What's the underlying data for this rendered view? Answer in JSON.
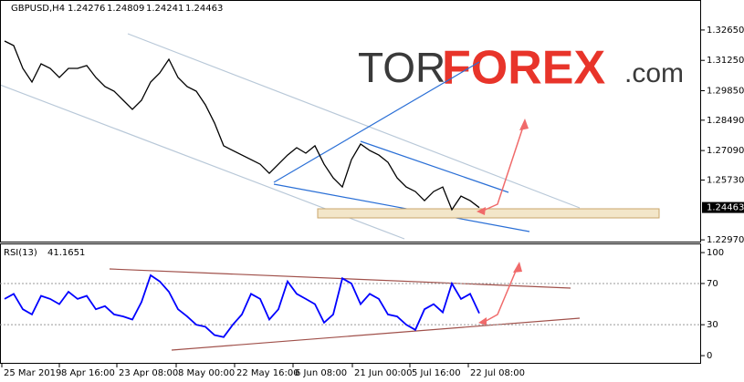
{
  "watermark": {
    "tor": "TOR",
    "forex": "FOREX",
    "com": ".com"
  },
  "chart_data": [
    {
      "type": "line",
      "title": "GBPUSD,H4",
      "ohlc": [
        1.24276,
        1.24809,
        1.24241,
        1.24463
      ],
      "x": [
        0,
        1,
        2,
        3,
        4,
        5,
        6,
        7,
        8,
        9,
        10,
        11,
        12,
        13,
        14,
        15,
        16,
        17,
        18,
        19,
        20,
        21,
        22,
        23,
        24,
        25,
        26,
        27,
        28,
        29,
        30,
        31,
        32,
        33,
        34,
        35,
        36,
        37,
        38,
        39,
        40,
        41,
        42,
        43,
        44,
        45,
        46,
        47,
        48,
        49,
        50,
        51,
        52
      ],
      "series": [
        {
          "name": "GBPUSD",
          "color": "#000000",
          "values": [
            1.3214,
            1.3193,
            1.3088,
            1.3025,
            1.3109,
            1.3088,
            1.3046,
            1.3088,
            1.3088,
            1.3101,
            1.3046,
            1.3004,
            1.2983,
            1.2941,
            1.2899,
            1.2941,
            1.3025,
            1.3067,
            1.313,
            1.3046,
            1.3004,
            1.2983,
            1.292,
            1.2836,
            1.2731,
            1.2709,
            1.2688,
            1.2667,
            1.2646,
            1.2604,
            1.2646,
            1.2688,
            1.2722,
            1.2697,
            1.2731,
            1.2646,
            1.2583,
            1.2541,
            1.2667,
            1.2739,
            1.2709,
            1.2688,
            1.2655,
            1.2583,
            1.2541,
            1.252,
            1.2478,
            1.252,
            1.2541,
            1.2436,
            1.2499,
            1.2478,
            1.2446
          ]
        }
      ],
      "current_price": 1.24463,
      "xlim": [
        -0.5,
        76.3
      ],
      "xticks": [
        {
          "value": -0.3,
          "label": "25 Mar 2019"
        },
        {
          "value": 6,
          "label": "8 Apr 16:00"
        },
        {
          "value": 12.3,
          "label": "23 Apr 08:00"
        },
        {
          "value": 18.8,
          "label": "8 May 00:00"
        },
        {
          "value": 25.2,
          "label": "22 May 16:00"
        },
        {
          "value": 31.6,
          "label": "6 Jun 08:00"
        },
        {
          "value": 38.1,
          "label": "21 Jun 00:00"
        },
        {
          "value": 44.4,
          "label": "5 Jul 16:00"
        },
        {
          "value": 50.8,
          "label": "22 Jul 08:00"
        }
      ],
      "ylim": [
        1.2289,
        1.3395
      ],
      "yticks": [
        {
          "value": 1.3265,
          "label": "1.32650"
        },
        {
          "value": 1.3125,
          "label": "1.31250"
        },
        {
          "value": 1.2985,
          "label": "1.29850"
        },
        {
          "value": 1.2849,
          "label": "1.28490"
        },
        {
          "value": 1.2709,
          "label": "1.27090"
        },
        {
          "value": 1.2573,
          "label": "1.25730"
        },
        {
          "value": 1.2297,
          "label": "1.22970"
        }
      ]
    },
    {
      "type": "line",
      "title": "RSI(13)",
      "last_value": 41.1651,
      "x": [
        0,
        1,
        2,
        3,
        4,
        5,
        6,
        7,
        8,
        9,
        10,
        11,
        12,
        13,
        14,
        15,
        16,
        17,
        18,
        19,
        20,
        21,
        22,
        23,
        24,
        25,
        26,
        27,
        28,
        29,
        30,
        31,
        32,
        33,
        34,
        35,
        36,
        37,
        38,
        39,
        40,
        41,
        42,
        43,
        44,
        45,
        46,
        47,
        48,
        49,
        50,
        51,
        52
      ],
      "series": [
        {
          "name": "RSI",
          "color": "#0000ff",
          "values": [
            55,
            60,
            45,
            40,
            58,
            55,
            50,
            62,
            55,
            58,
            45,
            48,
            40,
            38,
            35,
            52,
            78,
            72,
            62,
            45,
            38,
            30,
            28,
            20,
            18,
            30,
            40,
            60,
            55,
            35,
            45,
            72,
            60,
            55,
            50,
            32,
            40,
            75,
            70,
            50,
            60,
            55,
            40,
            38,
            30,
            25,
            45,
            50,
            42,
            70,
            55,
            60,
            41.1651
          ]
        }
      ],
      "xlim": [
        -0.5,
        76.3
      ],
      "ylim": [
        -7,
        108
      ],
      "yticks": [
        0,
        30,
        70,
        100
      ],
      "levels": [
        70,
        30
      ]
    }
  ]
}
